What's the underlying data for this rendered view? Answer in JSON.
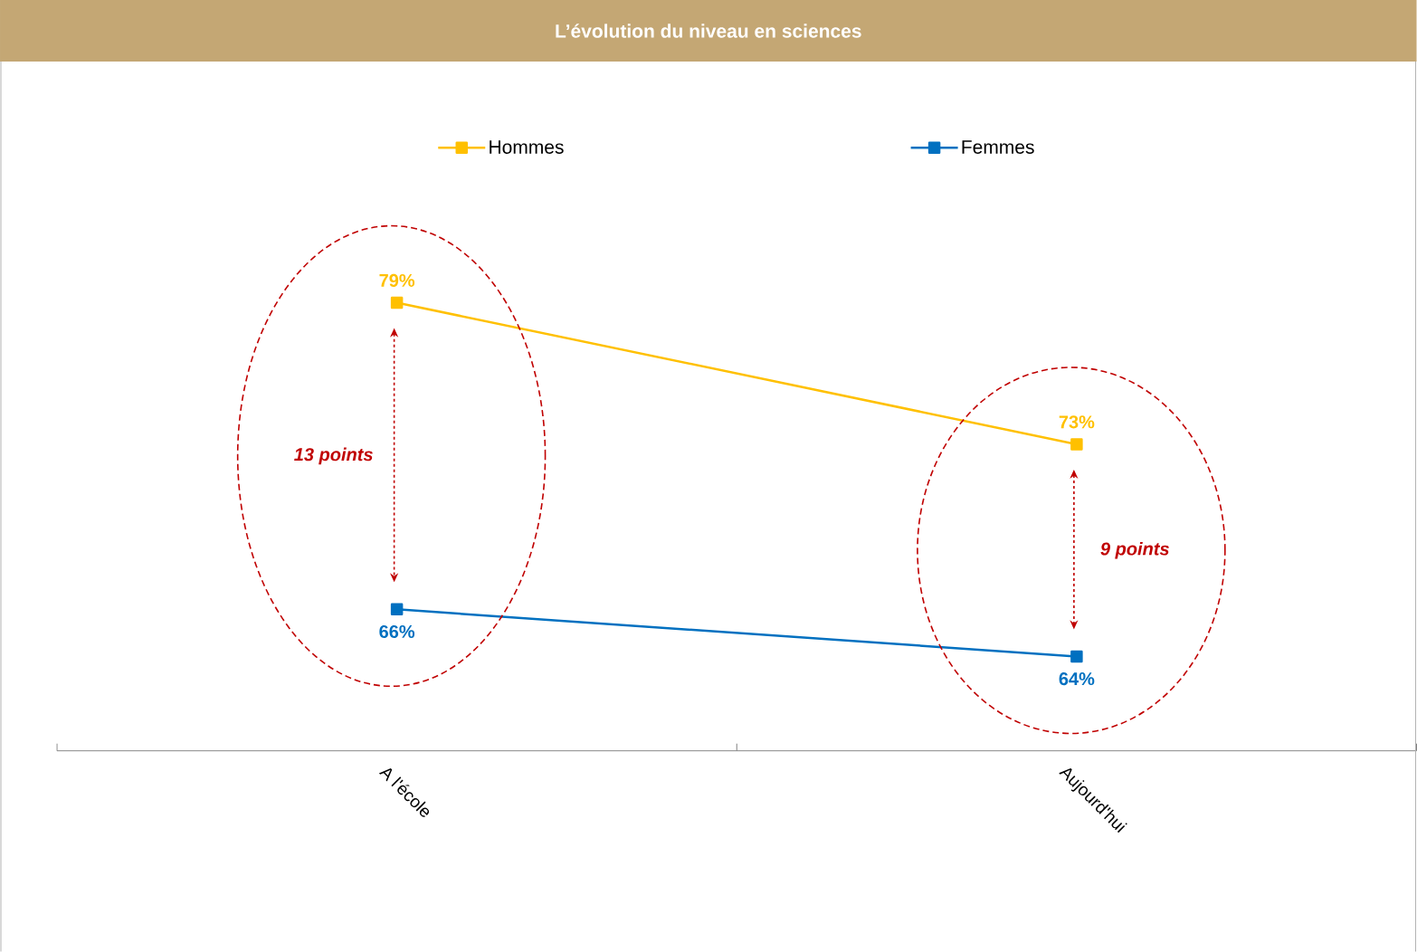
{
  "chart_data": {
    "type": "line",
    "title": "L’évolution du niveau en sciences",
    "categories": [
      "A l'école",
      "Aujourd'hui"
    ],
    "series": [
      {
        "name": "Hommes",
        "color": "#ffc000",
        "values": [
          79,
          73
        ],
        "value_labels": [
          "79%",
          "73%"
        ]
      },
      {
        "name": "Femmes",
        "color": "#0070c0",
        "values": [
          66,
          64
        ],
        "value_labels": [
          "66%",
          "64%"
        ]
      }
    ],
    "annotations": [
      "13 points",
      "9 points"
    ],
    "marker": "square",
    "legend": "top",
    "grid": false
  }
}
